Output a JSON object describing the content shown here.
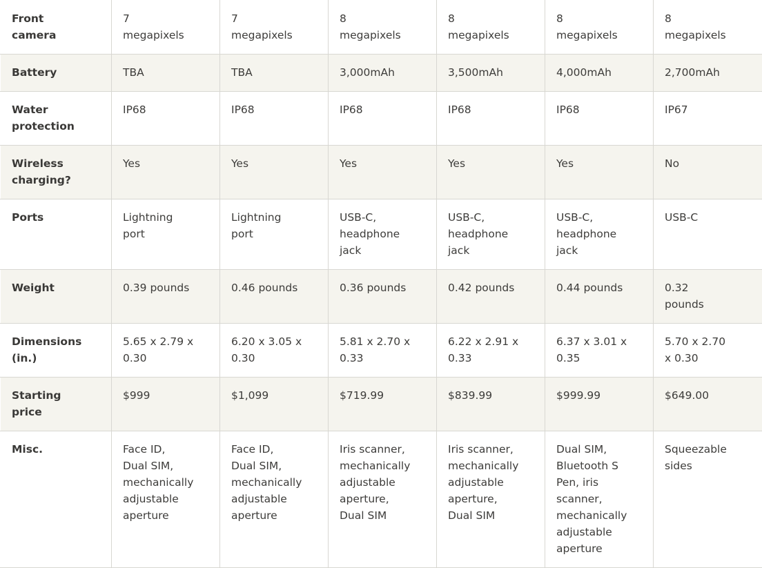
{
  "table": {
    "rows": [
      {
        "label": "Front\ncamera",
        "values": [
          "7\nmegapixels",
          "7\nmegapixels",
          "8\nmegapixels",
          "8\nmegapixels",
          "8\nmegapixels",
          "8\nmegapixels"
        ]
      },
      {
        "label": "Battery",
        "values": [
          "TBA",
          "TBA",
          "3,000mAh",
          "3,500mAh",
          "4,000mAh",
          "2,700mAh"
        ]
      },
      {
        "label": "Water\nprotection",
        "values": [
          "IP68",
          "IP68",
          "IP68",
          "IP68",
          "IP68",
          "IP67"
        ]
      },
      {
        "label": "Wireless\ncharging?",
        "values": [
          "Yes",
          "Yes",
          "Yes",
          "Yes",
          "Yes",
          "No"
        ]
      },
      {
        "label": "Ports",
        "values": [
          "Lightning\nport",
          "Lightning\nport",
          "USB-C,\nheadphone\njack",
          "USB-C,\nheadphone\njack",
          "USB-C,\nheadphone\njack",
          "USB-C"
        ]
      },
      {
        "label": "Weight",
        "values": [
          "0.39 pounds",
          "0.46 pounds",
          "0.36 pounds",
          "0.42 pounds",
          "0.44 pounds",
          "0.32\npounds"
        ]
      },
      {
        "label": "Dimensions\n(in.)",
        "values": [
          "5.65 x 2.79 x\n0.30",
          "6.20 x 3.05 x\n0.30",
          "5.81 x 2.70 x\n0.33",
          "6.22 x 2.91 x\n0.33",
          "6.37 x 3.01 x\n0.35",
          "5.70 x 2.70\nx 0.30"
        ]
      },
      {
        "label": "Starting\nprice",
        "values": [
          "$999",
          "$1,099",
          "$719.99",
          "$839.99",
          "$999.99",
          "$649.00"
        ]
      },
      {
        "label": "Misc.",
        "values": [
          "Face ID,\nDual SIM,\nmechanically\nadjustable\naperture",
          "Face ID,\nDual SIM,\nmechanically\nadjustable\naperture",
          "Iris scanner,\nmechanically\nadjustable\naperture,\nDual SIM",
          "Iris scanner,\nmechanically\nadjustable\naperture,\nDual SIM",
          "Dual SIM,\nBluetooth S\nPen, iris\nscanner,\nmechanically\nadjustable\naperture",
          "Squeezable\nsides"
        ]
      }
    ]
  },
  "colors": {
    "stripe_row_bg": "#f5f4ee",
    "plain_row_bg": "#ffffff",
    "border": "#d8d7d2",
    "text": "#3d3c3a"
  }
}
